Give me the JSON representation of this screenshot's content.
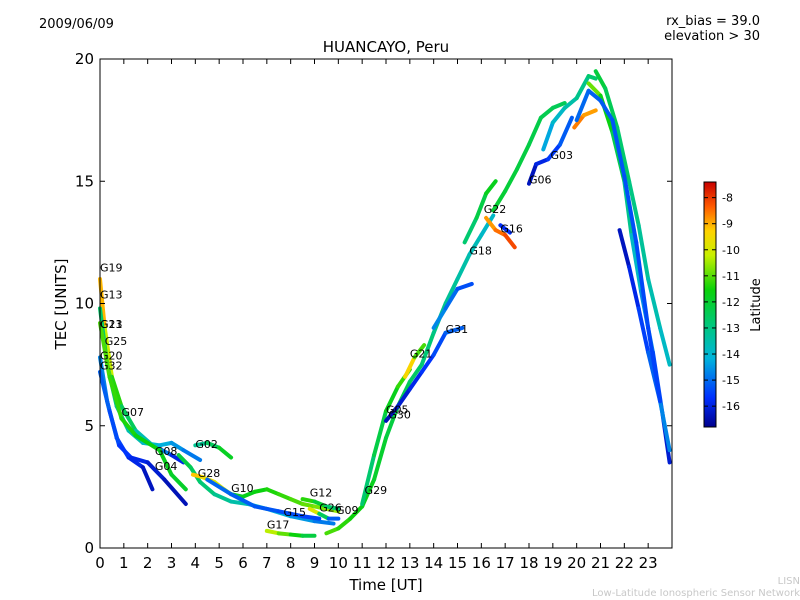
{
  "date": "2009/06/09",
  "corner_info": [
    "rx_bias = 39.0",
    "elevation > 30"
  ],
  "credit": [
    "LISN",
    "Low-Latitude Ionospheric Sensor Network"
  ],
  "chart_data": {
    "type": "scatter",
    "title": "HUANCAYO, Peru",
    "xlabel": "Time [UT]",
    "ylabel": "TEC [UNITS]",
    "xlim": [
      0,
      24
    ],
    "ylim": [
      0,
      20
    ],
    "xticks": [
      0,
      1,
      2,
      3,
      4,
      5,
      6,
      7,
      8,
      9,
      10,
      11,
      12,
      13,
      14,
      15,
      16,
      17,
      18,
      19,
      20,
      21,
      22,
      23
    ],
    "yticks": [
      0,
      5,
      10,
      15,
      20
    ],
    "grid": false,
    "colorbar": {
      "label": "Latitude",
      "range": [
        -16.8,
        -7.4
      ],
      "ticks": [
        -8,
        -9,
        -10,
        -11,
        -12,
        -13,
        -14,
        -15,
        -16
      ]
    },
    "satellite_labels": [
      {
        "name": "G19",
        "x": 0.0,
        "y": 11.3
      },
      {
        "name": "G13",
        "x": 0.0,
        "y": 10.2
      },
      {
        "name": "G23",
        "x": 0.0,
        "y": 9.0
      },
      {
        "name": "G11",
        "x": 0.0,
        "y": 9.0
      },
      {
        "name": "G25",
        "x": 0.2,
        "y": 8.3
      },
      {
        "name": "G20",
        "x": 0.0,
        "y": 7.7
      },
      {
        "name": "G32",
        "x": 0.0,
        "y": 7.3
      },
      {
        "name": "G07",
        "x": 0.9,
        "y": 5.4
      },
      {
        "name": "G02",
        "x": 4.0,
        "y": 4.1
      },
      {
        "name": "G08",
        "x": 2.3,
        "y": 3.8
      },
      {
        "name": "G04",
        "x": 2.3,
        "y": 3.2
      },
      {
        "name": "G28",
        "x": 4.1,
        "y": 2.9
      },
      {
        "name": "G10",
        "x": 5.5,
        "y": 2.3
      },
      {
        "name": "G12",
        "x": 8.8,
        "y": 2.1
      },
      {
        "name": "G15",
        "x": 7.7,
        "y": 1.3
      },
      {
        "name": "G17",
        "x": 7.0,
        "y": 0.8
      },
      {
        "name": "G26",
        "x": 9.2,
        "y": 1.5
      },
      {
        "name": "G09",
        "x": 9.9,
        "y": 1.4
      },
      {
        "name": "G29",
        "x": 11.1,
        "y": 2.2
      },
      {
        "name": "G05",
        "x": 12.0,
        "y": 5.5
      },
      {
        "name": "G30",
        "x": 12.1,
        "y": 5.3
      },
      {
        "name": "G21",
        "x": 13.0,
        "y": 7.8
      },
      {
        "name": "G31",
        "x": 14.5,
        "y": 8.8
      },
      {
        "name": "G18",
        "x": 15.5,
        "y": 12.0
      },
      {
        "name": "G22",
        "x": 16.1,
        "y": 13.7
      },
      {
        "name": "G16",
        "x": 16.8,
        "y": 12.9
      },
      {
        "name": "G06",
        "x": 18.0,
        "y": 14.9
      },
      {
        "name": "G03",
        "x": 18.9,
        "y": 15.9
      }
    ],
    "tracks": [
      {
        "lat_start": -8.5,
        "lat_end": -16.5,
        "points": [
          [
            0,
            11.0
          ],
          [
            0.2,
            9.0
          ],
          [
            0.5,
            7.0
          ],
          [
            0.9,
            5.8
          ],
          [
            1.5,
            4.8
          ],
          [
            2.2,
            4.2
          ],
          [
            3.0,
            3.8
          ],
          [
            3.5,
            3.5
          ]
        ]
      },
      {
        "lat_start": -12.5,
        "lat_end": -15.0,
        "points": [
          [
            0,
            9.8
          ],
          [
            0.3,
            7.5
          ],
          [
            0.7,
            5.8
          ],
          [
            1.2,
            4.8
          ],
          [
            1.8,
            4.3
          ],
          [
            2.5,
            4.2
          ],
          [
            3.0,
            4.3
          ],
          [
            3.5,
            4.0
          ],
          [
            4.2,
            3.6
          ]
        ]
      },
      {
        "lat_start": -14.5,
        "lat_end": -16.5,
        "points": [
          [
            0,
            7.8
          ],
          [
            0.3,
            6.0
          ],
          [
            0.7,
            4.5
          ],
          [
            1.2,
            3.7
          ],
          [
            1.8,
            3.3
          ],
          [
            2.2,
            2.4
          ]
        ]
      },
      {
        "lat_start": -11.0,
        "lat_end": -12.0,
        "points": [
          [
            0,
            9.2
          ],
          [
            0.4,
            7.0
          ],
          [
            0.9,
            5.3
          ],
          [
            1.5,
            4.6
          ],
          [
            2.5,
            4.0
          ],
          [
            3.0,
            3.0
          ],
          [
            3.6,
            2.4
          ]
        ]
      },
      {
        "lat_start": -15.0,
        "lat_end": -16.5,
        "points": [
          [
            0,
            7.2
          ],
          [
            0.4,
            5.6
          ],
          [
            0.8,
            4.2
          ],
          [
            1.3,
            3.7
          ],
          [
            2.0,
            3.5
          ],
          [
            2.7,
            2.8
          ],
          [
            3.6,
            1.8
          ]
        ]
      },
      {
        "lat_start": -13.5,
        "lat_end": -11.5,
        "points": [
          [
            4.0,
            4.2
          ],
          [
            4.5,
            4.3
          ],
          [
            5.0,
            4.1
          ],
          [
            5.5,
            3.7
          ]
        ]
      },
      {
        "lat_start": -12.0,
        "lat_end": -15.0,
        "points": [
          [
            3.3,
            3.8
          ],
          [
            3.8,
            3.3
          ],
          [
            4.2,
            2.7
          ],
          [
            4.8,
            2.2
          ],
          [
            5.5,
            1.9
          ],
          [
            6.2,
            1.8
          ],
          [
            7.0,
            1.6
          ],
          [
            8.0,
            1.3
          ],
          [
            9.0,
            1.1
          ],
          [
            9.8,
            1.0
          ]
        ]
      },
      {
        "lat_start": -9.0,
        "lat_end": -10.5,
        "points": [
          [
            3.9,
            3.0
          ],
          [
            4.3,
            2.9
          ],
          [
            4.8,
            2.7
          ],
          [
            5.2,
            2.4
          ],
          [
            5.5,
            2.2
          ]
        ]
      },
      {
        "lat_start": -12.0,
        "lat_end": -10.5,
        "points": [
          [
            5.5,
            2.2
          ],
          [
            6.0,
            2.1
          ],
          [
            6.5,
            2.3
          ],
          [
            7.0,
            2.4
          ],
          [
            7.5,
            2.2
          ],
          [
            8.0,
            2.0
          ],
          [
            8.5,
            1.8
          ],
          [
            9.0,
            1.7
          ],
          [
            9.5,
            1.6
          ],
          [
            10.0,
            1.5
          ]
        ]
      },
      {
        "lat_start": -15.0,
        "lat_end": -15.5,
        "points": [
          [
            4.5,
            2.8
          ],
          [
            5.5,
            2.2
          ],
          [
            6.5,
            1.7
          ],
          [
            7.5,
            1.5
          ],
          [
            8.5,
            1.3
          ],
          [
            9.2,
            1.2
          ]
        ]
      },
      {
        "lat_start": -10.0,
        "lat_end": -12.5,
        "points": [
          [
            7.0,
            0.7
          ],
          [
            7.5,
            0.6
          ],
          [
            8.0,
            0.55
          ],
          [
            8.5,
            0.5
          ],
          [
            9.0,
            0.5
          ]
        ]
      },
      {
        "lat_start": -11.0,
        "lat_end": -13.0,
        "points": [
          [
            8.5,
            2.0
          ],
          [
            9.0,
            1.9
          ],
          [
            9.5,
            1.7
          ],
          [
            10.0,
            1.6
          ]
        ]
      },
      {
        "lat_start": -8.5,
        "lat_end": -16.5,
        "points": [
          [
            8.8,
            1.6
          ],
          [
            9.2,
            1.4
          ],
          [
            9.6,
            1.2
          ],
          [
            10.0,
            1.2
          ]
        ]
      },
      {
        "lat_start": -11.0,
        "lat_end": -14.0,
        "points": [
          [
            9.5,
            0.6
          ],
          [
            10.0,
            0.8
          ],
          [
            10.5,
            1.2
          ],
          [
            11.0,
            1.7
          ],
          [
            11.5,
            2.8
          ],
          [
            12.0,
            4.5
          ],
          [
            12.5,
            5.8
          ],
          [
            13.0,
            6.8
          ],
          [
            13.5,
            7.5
          ],
          [
            14.0,
            8.8
          ],
          [
            14.5,
            10.0
          ],
          [
            15.0,
            11.0
          ],
          [
            15.5,
            12.0
          ],
          [
            16.0,
            12.8
          ],
          [
            16.5,
            13.6
          ]
        ]
      },
      {
        "lat_start": -13.0,
        "lat_end": -11.0,
        "points": [
          [
            11.0,
            1.8
          ],
          [
            11.5,
            3.8
          ],
          [
            12.0,
            5.6
          ],
          [
            12.5,
            6.6
          ],
          [
            13.0,
            7.3
          ]
        ]
      },
      {
        "lat_start": -16.5,
        "lat_end": -15.0,
        "points": [
          [
            12.0,
            5.2
          ],
          [
            12.5,
            5.8
          ],
          [
            13.0,
            6.5
          ],
          [
            13.5,
            7.2
          ],
          [
            14.0,
            7.9
          ],
          [
            14.5,
            8.8
          ],
          [
            15.2,
            9.0
          ]
        ]
      },
      {
        "lat_start": -8.5,
        "lat_end": -12.0,
        "points": [
          [
            12.8,
            7.0
          ],
          [
            13.2,
            7.8
          ],
          [
            13.6,
            8.3
          ]
        ]
      },
      {
        "lat_start": -14.5,
        "lat_end": -15.5,
        "points": [
          [
            14.0,
            9.0
          ],
          [
            14.5,
            9.8
          ],
          [
            15.0,
            10.6
          ],
          [
            15.6,
            10.8
          ]
        ]
      },
      {
        "lat_start": -13.0,
        "lat_end": -11.5,
        "points": [
          [
            15.3,
            12.5
          ],
          [
            15.8,
            13.5
          ],
          [
            16.2,
            14.5
          ],
          [
            16.6,
            15.0
          ]
        ]
      },
      {
        "lat_start": -9.0,
        "lat_end": -8.0,
        "points": [
          [
            16.2,
            13.5
          ],
          [
            16.6,
            13.0
          ],
          [
            17.0,
            12.8
          ],
          [
            17.4,
            12.3
          ]
        ]
      },
      {
        "lat_start": -16.0,
        "lat_end": -15.5,
        "points": [
          [
            16.8,
            13.2
          ],
          [
            17.2,
            12.9
          ]
        ]
      },
      {
        "lat_start": -12.0,
        "lat_end": -12.5,
        "points": [
          [
            16.5,
            13.8
          ],
          [
            17.0,
            14.6
          ],
          [
            17.5,
            15.5
          ],
          [
            18.0,
            16.5
          ],
          [
            18.5,
            17.6
          ],
          [
            19.0,
            18.0
          ],
          [
            19.5,
            18.2
          ]
        ]
      },
      {
        "lat_start": -16.5,
        "lat_end": -15.0,
        "points": [
          [
            18.0,
            14.9
          ],
          [
            18.3,
            15.7
          ],
          [
            18.8,
            15.9
          ],
          [
            19.3,
            16.5
          ],
          [
            19.8,
            17.6
          ]
        ]
      },
      {
        "lat_start": -14.5,
        "lat_end": -12.5,
        "points": [
          [
            18.6,
            16.3
          ],
          [
            19.0,
            17.4
          ],
          [
            19.5,
            18.0
          ],
          [
            20.0,
            18.4
          ],
          [
            20.5,
            19.3
          ],
          [
            20.8,
            19.2
          ]
        ]
      },
      {
        "lat_start": -8.5,
        "lat_end": -9.0,
        "points": [
          [
            19.9,
            17.2
          ],
          [
            20.3,
            17.7
          ],
          [
            20.8,
            17.9
          ]
        ]
      },
      {
        "lat_start": -10.5,
        "lat_end": -16.5,
        "points": [
          [
            20.5,
            19.0
          ],
          [
            21.0,
            18.5
          ],
          [
            21.5,
            17.0
          ],
          [
            22.0,
            15.0
          ],
          [
            22.3,
            12.8
          ],
          [
            22.7,
            10.5
          ],
          [
            23.2,
            8.0
          ],
          [
            23.6,
            5.5
          ],
          [
            23.9,
            3.5
          ]
        ]
      },
      {
        "lat_start": -12.0,
        "lat_end": -14.0,
        "points": [
          [
            20.8,
            19.5
          ],
          [
            21.2,
            18.8
          ],
          [
            21.7,
            17.2
          ],
          [
            22.2,
            15.0
          ],
          [
            22.6,
            13.2
          ],
          [
            23.0,
            11.0
          ],
          [
            23.5,
            9.0
          ],
          [
            23.9,
            7.5
          ]
        ]
      },
      {
        "lat_start": -16.5,
        "lat_end": -14.5,
        "points": [
          [
            21.8,
            13.0
          ],
          [
            22.2,
            11.5
          ],
          [
            22.6,
            9.8
          ],
          [
            23.0,
            8.0
          ],
          [
            23.5,
            6.0
          ],
          [
            23.9,
            4.0
          ]
        ]
      },
      {
        "lat_start": -15.0,
        "lat_end": -15.5,
        "points": [
          [
            20.0,
            17.5
          ],
          [
            20.5,
            18.7
          ],
          [
            21.0,
            18.3
          ],
          [
            21.5,
            17.5
          ],
          [
            22.0,
            15.2
          ],
          [
            22.5,
            12.5
          ],
          [
            23.0,
            9.0
          ],
          [
            23.5,
            6.0
          ]
        ]
      }
    ]
  }
}
